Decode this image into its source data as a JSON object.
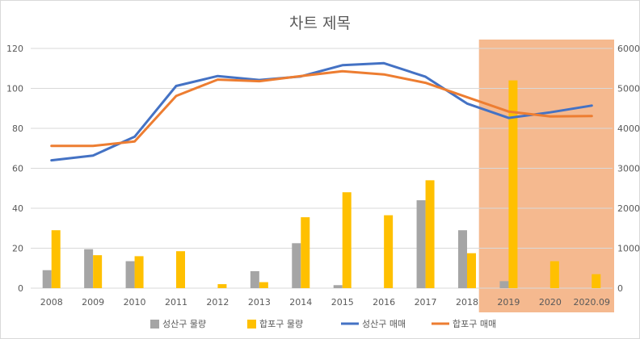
{
  "chart_data": {
    "type": "bar",
    "title": "차트 제목",
    "categories": [
      "2008",
      "2009",
      "2010",
      "2011",
      "2012",
      "2013",
      "2014",
      "2015",
      "2016",
      "2017",
      "2018",
      "2019",
      "2020",
      "2020.09"
    ],
    "bar_series": [
      {
        "name": "성산구 물량",
        "color": "#a5a5a5",
        "values": [
          9,
          19.5,
          13.5,
          0,
          0,
          8.5,
          22.5,
          1.5,
          0,
          44,
          29,
          3.5,
          0,
          0
        ]
      },
      {
        "name": "합포구 물량",
        "color": "#ffc000",
        "values": [
          29,
          16.5,
          16,
          18.5,
          2,
          3,
          35.5,
          48,
          36.5,
          54,
          17.5,
          104,
          13.5,
          7
        ]
      }
    ],
    "line_series": [
      {
        "name": "성산구 매매",
        "color": "#4472c4",
        "values": [
          3200,
          3320,
          3790,
          5060,
          5310,
          5210,
          5300,
          5580,
          5630,
          5290,
          4620,
          4260,
          4400,
          4570
        ]
      },
      {
        "name": "합포구 매매",
        "color": "#ed7d31",
        "values": [
          3560,
          3560,
          3670,
          4810,
          5220,
          5180,
          5310,
          5430,
          5350,
          5140,
          4780,
          4420,
          4300,
          4310
        ]
      }
    ],
    "y_left": {
      "min": 0,
      "max": 120,
      "ticks": [
        0,
        20,
        40,
        60,
        80,
        100,
        120
      ]
    },
    "y_right": {
      "min": 0,
      "max": 6000,
      "ticks": [
        0,
        1000,
        2000,
        3000,
        4000,
        5000,
        6000
      ]
    },
    "highlight": {
      "from": "2019",
      "to": "2020.09",
      "color": "#f4b183"
    },
    "legend_position": "bottom",
    "grid": true
  }
}
